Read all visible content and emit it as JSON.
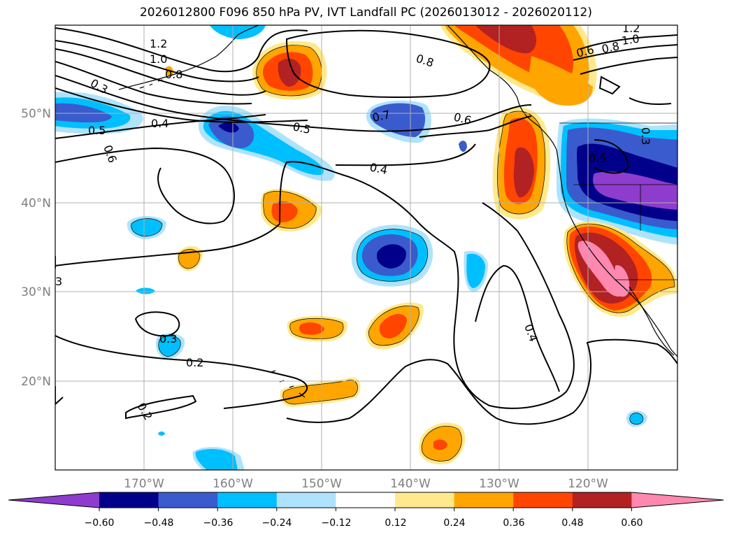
{
  "title": "2026012800 F096 850 hPa PV, IVT Landfall PC (2026013012 - 2026020112)",
  "latitude_labels": [
    "50°N",
    "40°N",
    "30°N",
    "20°N"
  ],
  "longitude_labels": [
    "170°W",
    "160°W",
    "150°W",
    "140°W",
    "130°W",
    "120°W"
  ],
  "contour_labels": [
    "1.2",
    "1.0",
    "0.8",
    "0.3",
    "0.5",
    "0.6",
    "0.4",
    "0.5",
    "0.7",
    "0.6",
    "0.4",
    "0.8",
    "1.2",
    "1.0",
    "0.8",
    "0.6",
    "0.5",
    "0.3",
    "0.3",
    "0.2",
    "0.2",
    "0.4",
    "3"
  ],
  "colorbar": {
    "ticks": [
      "−0.60",
      "−0.48",
      "−0.36",
      "−0.24",
      "−0.12",
      "0.12",
      "0.24",
      "0.36",
      "0.48",
      "0.60"
    ],
    "colors": [
      "#8e3ccd",
      "#00008b",
      "#3a5bcd",
      "#00bfff",
      "#aee3fb",
      "#ffffff",
      "#ffe98c",
      "#ffa500",
      "#ff4500",
      "#b22222",
      "#ff88b0"
    ]
  },
  "colors": {
    "gridline": "#b0b0b0",
    "contour": "#000000"
  }
}
